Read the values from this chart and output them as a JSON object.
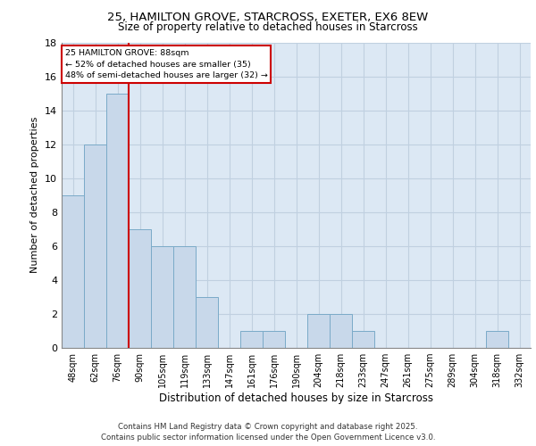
{
  "title_line1": "25, HAMILTON GROVE, STARCROSS, EXETER, EX6 8EW",
  "title_line2": "Size of property relative to detached houses in Starcross",
  "xlabel": "Distribution of detached houses by size in Starcross",
  "ylabel": "Number of detached properties",
  "categories": [
    "48sqm",
    "62sqm",
    "76sqm",
    "90sqm",
    "105sqm",
    "119sqm",
    "133sqm",
    "147sqm",
    "161sqm",
    "176sqm",
    "190sqm",
    "204sqm",
    "218sqm",
    "233sqm",
    "247sqm",
    "261sqm",
    "275sqm",
    "289sqm",
    "304sqm",
    "318sqm",
    "332sqm"
  ],
  "values": [
    9,
    12,
    15,
    7,
    6,
    6,
    3,
    0,
    1,
    1,
    0,
    2,
    2,
    1,
    0,
    0,
    0,
    0,
    0,
    1,
    0
  ],
  "bar_color": "#c8d8ea",
  "bar_edge_color": "#7aaac8",
  "ref_bar_index": 2,
  "annotation_line1": "25 HAMILTON GROVE: 88sqm",
  "annotation_line2": "← 52% of detached houses are smaller (35)",
  "annotation_line3": "48% of semi-detached houses are larger (32) →",
  "ylim": [
    0,
    18
  ],
  "yticks": [
    0,
    2,
    4,
    6,
    8,
    10,
    12,
    14,
    16,
    18
  ],
  "grid_color": "#c0d0e0",
  "bg_color": "#dce8f4",
  "footer_line1": "Contains HM Land Registry data © Crown copyright and database right 2025.",
  "footer_line2": "Contains public sector information licensed under the Open Government Licence v3.0."
}
